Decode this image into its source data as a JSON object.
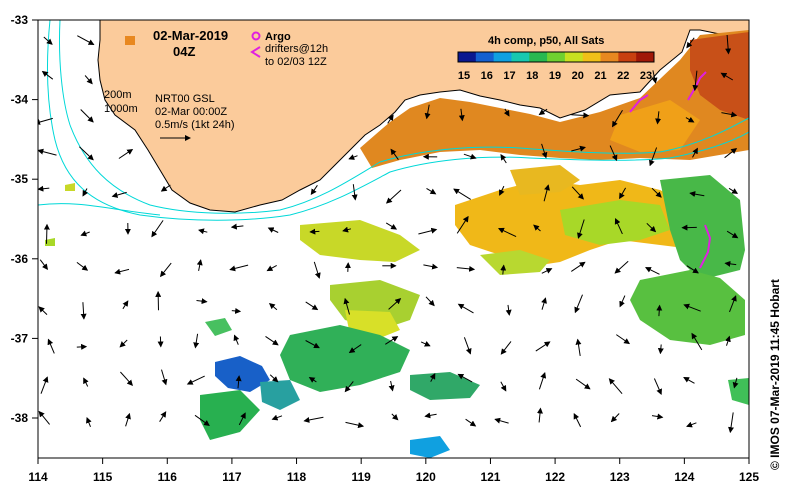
{
  "map": {
    "date": "02-Mar-2019",
    "time": "04Z",
    "argo_label": "Argo",
    "drifters_label": "drifters@12h",
    "drifters_range": "to 02/03 12Z",
    "isobath_200": "200m",
    "isobath_1000": "1000m",
    "altimetry_label": "NRT00 GSL",
    "altimetry_time": "02-Mar 00:00Z",
    "current_scale": "0.5m/s (1kt 24h)",
    "colorbar_title": "4h comp, p50, All Sats",
    "colorbar_ticks": [
      "15",
      "16",
      "17",
      "18",
      "19",
      "20",
      "21",
      "22",
      "23"
    ],
    "colorbar_colors": [
      "#0a1890",
      "#1460d0",
      "#10a0e0",
      "#18c8b0",
      "#28b850",
      "#70d030",
      "#c8e020",
      "#f0c018",
      "#e88820",
      "#c84010",
      "#a01808"
    ],
    "lon_ticks": [
      "114",
      "115",
      "116",
      "117",
      "118",
      "119",
      "120",
      "121",
      "122",
      "123",
      "124",
      "125"
    ],
    "lat_ticks": [
      "-33",
      "-34",
      "-35",
      "-36",
      "-37",
      "-38"
    ],
    "land_color": "#fbcb9b",
    "credit": "© IMOS 07-Mar-2019 11:45 Hobart"
  }
}
